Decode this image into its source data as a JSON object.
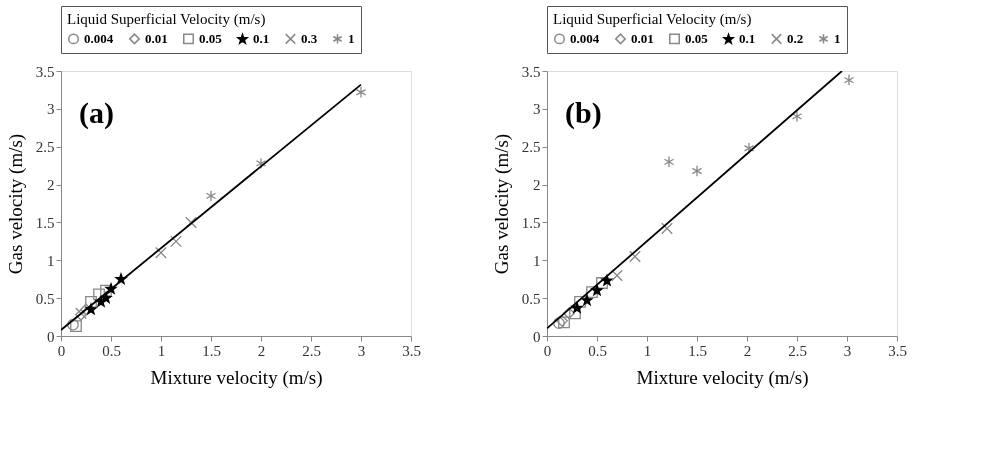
{
  "chart_data": [
    {
      "type": "scatter",
      "xlabel": "Mixture velocity (m/s)",
      "ylabel": "Gas velocity (m/s)",
      "legend_title": "Liquid Superficial Velocity (m/s)",
      "legend": "top",
      "grid": false,
      "annotations": [
        "(a)"
      ],
      "xlim": [
        0,
        3.5
      ],
      "ylim": [
        0,
        3.5
      ],
      "xticks": [
        0,
        0.5,
        1,
        1.5,
        2,
        2.5,
        3,
        3.5
      ],
      "yticks": [
        0,
        0.5,
        1,
        1.5,
        2,
        2.5,
        3,
        3.5
      ],
      "series": [
        {
          "name": "0.004",
          "color": "#888888",
          "marker": "circle",
          "x": [
            0.12
          ],
          "values": [
            0.15
          ]
        },
        {
          "name": "0.01",
          "color": "#888888",
          "marker": "diamond",
          "x": [
            0.2,
            0.25
          ],
          "values": [
            0.28,
            0.35
          ]
        },
        {
          "name": "0.05",
          "color": "#888888",
          "marker": "square",
          "x": [
            0.15,
            0.3,
            0.38,
            0.45
          ],
          "values": [
            0.13,
            0.45,
            0.55,
            0.6
          ]
        },
        {
          "name": "0.1",
          "color": "#000000",
          "marker": "star",
          "x": [
            0.3,
            0.4,
            0.45,
            0.5,
            0.6
          ],
          "values": [
            0.35,
            0.45,
            0.5,
            0.62,
            0.75
          ]
        },
        {
          "name": "0.3",
          "color": "#888888",
          "marker": "cross",
          "x": [
            0.2,
            1.0,
            1.15,
            1.3
          ],
          "values": [
            0.3,
            1.1,
            1.25,
            1.5
          ]
        },
        {
          "name": "1",
          "color": "#888888",
          "x": [
            1.5,
            2.0,
            3.0
          ],
          "values": [
            1.85,
            2.28,
            3.22
          ]
        },
        {
          "type": "line",
          "color": "#000000",
          "x": [
            0,
            3
          ],
          "values": [
            0.08,
            3.32
          ]
        }
      ]
    },
    {
      "type": "scatter",
      "xlabel": "Mixture velocity (m/s)",
      "ylabel": "Gas velocity (m/s)",
      "legend_title": "Liquid Superficial Velocity (m/s)",
      "legend": "top",
      "grid": false,
      "annotations": [
        "(b)"
      ],
      "xlim": [
        0,
        3.5
      ],
      "ylim": [
        0,
        3.5
      ],
      "xticks": [
        0,
        0.5,
        1,
        1.5,
        2,
        2.5,
        3,
        3.5
      ],
      "yticks": [
        0,
        0.5,
        1,
        1.5,
        2,
        2.5,
        3,
        3.5
      ],
      "series": [
        {
          "name": "0.004",
          "color": "#888888",
          "marker": "circle",
          "x": [
            0.12
          ],
          "values": [
            0.17
          ]
        },
        {
          "name": "0.01",
          "color": "#888888",
          "marker": "diamond",
          "x": [
            0.15,
            0.22
          ],
          "values": [
            0.2,
            0.3
          ]
        },
        {
          "name": "0.05",
          "color": "#888888",
          "marker": "square",
          "x": [
            0.17,
            0.28,
            0.33,
            0.45,
            0.55
          ],
          "values": [
            0.18,
            0.3,
            0.45,
            0.58,
            0.7
          ]
        },
        {
          "name": "0.1",
          "color": "#000000",
          "marker": "star",
          "x": [
            0.3,
            0.4,
            0.5,
            0.6
          ],
          "values": [
            0.37,
            0.47,
            0.6,
            0.73
          ]
        },
        {
          "name": "0.2",
          "color": "#888888",
          "marker": "cross",
          "x": [
            0.7,
            0.88,
            1.2
          ],
          "values": [
            0.8,
            1.05,
            1.42
          ]
        },
        {
          "name": "1",
          "color": "#888888",
          "x": [
            1.22,
            1.5,
            2.02,
            2.5,
            3.02
          ],
          "values": [
            2.3,
            2.18,
            2.48,
            2.9,
            3.38
          ]
        },
        {
          "type": "line",
          "color": "#000000",
          "x": [
            0,
            2.95
          ],
          "values": [
            0.1,
            3.5
          ]
        }
      ]
    }
  ]
}
